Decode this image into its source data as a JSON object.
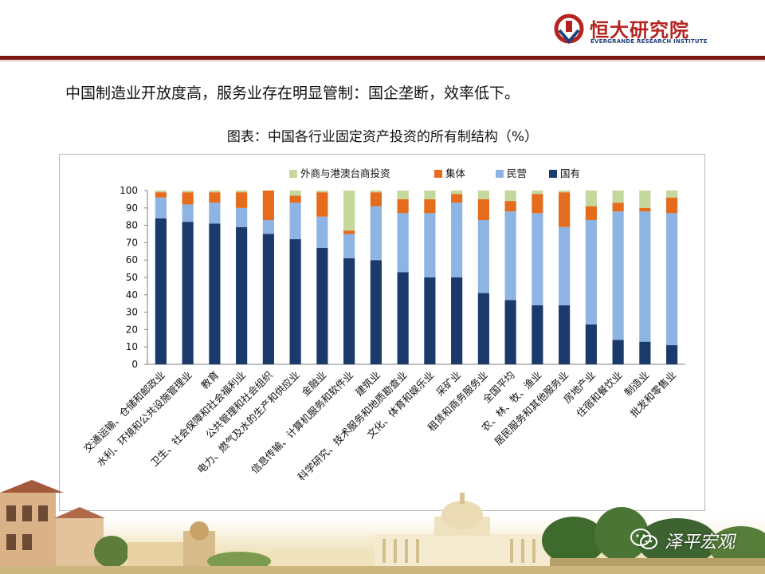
{
  "header": {
    "logo_cn": "恒大研究院",
    "logo_en": "EVERGRANDE RESEARCH INSTITUTE",
    "brand_color": "#b5231f",
    "line_color": "#7a1712"
  },
  "headline": "中国制造业开放度高，服务业存在明显管制：国企垄断，效率低下。",
  "chart_title": "图表：中国各行业固定资产投资的所有制结构（%）",
  "watermark": "泽平宏观",
  "chart_data": {
    "type": "bar",
    "stacked": true,
    "ylim": [
      0,
      100
    ],
    "yticks": [
      0,
      10,
      20,
      30,
      40,
      50,
      60,
      70,
      80,
      90,
      100
    ],
    "legend_position": "top",
    "categories": [
      "交通运输、仓储和邮政业",
      "水利、环境和公共设施管理业",
      "教育",
      "卫生、社会保障和社会福利业",
      "公共管理和社会组织",
      "电力、燃气及水的生产和供应业",
      "金融业",
      "信息传输、计算机服务和软件业",
      "建筑业",
      "科学研究、技术服务和地质勘查业",
      "文化、体育和娱乐业",
      "采矿业",
      "租赁和商务服务业",
      "全国平均",
      "农、林、牧、渔业",
      "居民服务和其他服务业",
      "房地产业",
      "住宿和餐饮业",
      "制造业",
      "批发和零售业"
    ],
    "series": [
      {
        "name": "国有",
        "color": "#1b3a6b",
        "values": [
          84,
          82,
          81,
          79,
          75,
          72,
          67,
          61,
          60,
          53,
          50,
          50,
          41,
          37,
          34,
          34,
          23,
          14,
          13,
          11
        ]
      },
      {
        "name": "民营",
        "color": "#8db4e2",
        "values": [
          12,
          10,
          12,
          11,
          8,
          21,
          18,
          14,
          31,
          34,
          37,
          43,
          42,
          51,
          53,
          45,
          60,
          74,
          75,
          76
        ]
      },
      {
        "name": "集体",
        "color": "#e46c1c",
        "values": [
          3,
          7,
          6,
          9,
          17,
          4,
          14,
          2,
          8,
          8,
          8,
          5,
          12,
          6,
          11,
          20,
          8,
          5,
          2,
          9
        ]
      },
      {
        "name": "外商与港澳台商投资",
        "color": "#c4d89c",
        "values": [
          1,
          1,
          1,
          1,
          0,
          3,
          1,
          23,
          1,
          5,
          5,
          2,
          5,
          6,
          2,
          1,
          9,
          7,
          10,
          4
        ]
      }
    ],
    "legend_order": [
      "外商与港澳台商投资",
      "集体",
      "民营",
      "国有"
    ]
  }
}
